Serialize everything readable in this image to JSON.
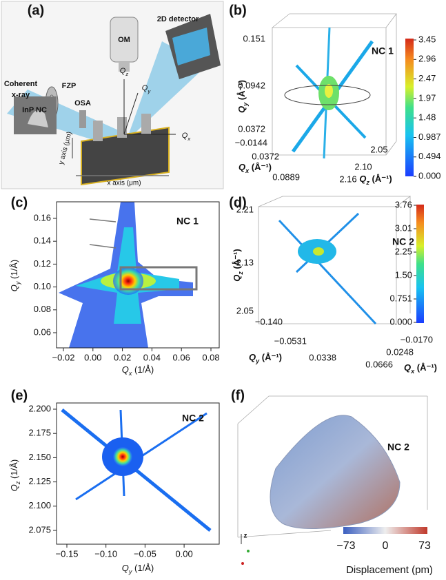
{
  "panel_a": {
    "label": "(a)",
    "coherent": "Coherent",
    "xray": "x-ray",
    "fzp": "FZP",
    "osa": "OSA",
    "om": "OM",
    "detector": "2D detector",
    "sample": "InP NC",
    "qz": "Qz",
    "qy": "Qy",
    "qx": "Qx",
    "y_axis": "y axis (μm)",
    "x_axis": "x axis (μm)"
  },
  "panel_b": {
    "label": "(b)",
    "annotation": "NC 1",
    "qy_ticks": [
      "0.151",
      "0.0942",
      "0.0372"
    ],
    "qy_label": "Qy (Å⁻¹)",
    "qx_ticks": [
      "−0.0144",
      "0.0372",
      "0.0889"
    ],
    "qx_label": "Qx (Å⁻¹)",
    "qz_ticks": [
      "2.05",
      "2.10",
      "2.16"
    ],
    "qz_label": "Qz (Å⁻¹)",
    "colorbar_ticks": [
      "3.45",
      "2.96",
      "2.47",
      "1.97",
      "1.48",
      "0.987",
      "0.494",
      "0.000"
    ]
  },
  "panel_c": {
    "label": "(c)",
    "annotation": "NC 1",
    "x_ticks": [
      "−0.02",
      "0.00",
      "0.02",
      "0.04",
      "0.06",
      "0.08"
    ],
    "x_label": "Qx (1/Å)",
    "y_ticks": [
      "0.16",
      "0.14",
      "0.12",
      "0.10",
      "0.08",
      "0.06"
    ],
    "y_label": "Qy (1/Å)"
  },
  "panel_d": {
    "label": "(d)",
    "annotation": "NC 2",
    "qz_ticks": [
      "2.21",
      "2.13",
      "2.05"
    ],
    "qz_label": "Qz (Å⁻¹)",
    "qy_ticks": [
      "−0.140",
      "−0.0531",
      "0.0338"
    ],
    "qy_label": "Qy (Å⁻¹)",
    "qx_ticks": [
      "−0.0170",
      "0.0248",
      "0.0666"
    ],
    "qx_label": "Qx (Å⁻¹)",
    "colorbar_ticks": [
      "3.76",
      "3.01",
      "2.25",
      "1.50",
      "0.751",
      "0.000"
    ]
  },
  "panel_e": {
    "label": "(e)",
    "annotation": "NC 2",
    "x_ticks": [
      "−0.15",
      "−0.10",
      "−0.05",
      "0.00"
    ],
    "x_label": "Qy (1/Å)",
    "y_ticks": [
      "2.200",
      "2.175",
      "2.150",
      "2.125",
      "2.100",
      "2.075"
    ],
    "y_label": "Qz (1/Å)"
  },
  "panel_f": {
    "label": "(f)",
    "annotation": "NC 2",
    "axis_z": "z",
    "colorbar_ticks": [
      "−73",
      "0",
      "73"
    ],
    "colorbar_label": "Displacement (pm)"
  }
}
